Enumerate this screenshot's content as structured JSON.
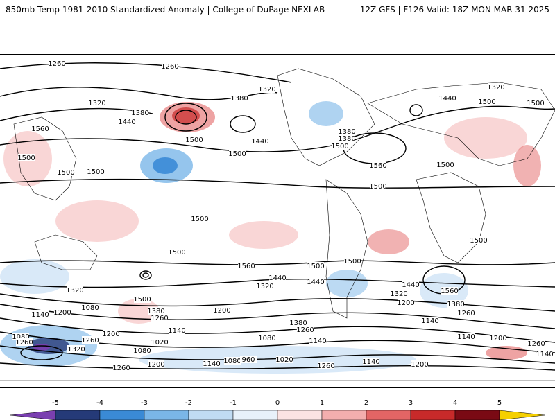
{
  "header": {
    "title": "850mb Temp 1981-2010 Standardized Anomaly | College of DuPage NEXLAB",
    "run_info": "12Z GFS | F126 Valid: 18Z MON MAR 31 2025"
  },
  "contour_labels": [
    {
      "text": "1260"
    },
    {
      "text": "1260"
    },
    {
      "text": "1320"
    },
    {
      "text": "1380"
    },
    {
      "text": "1440"
    },
    {
      "text": "1320"
    },
    {
      "text": "1380"
    },
    {
      "text": "1560"
    },
    {
      "text": "1500"
    },
    {
      "text": "1500"
    },
    {
      "text": "1500"
    },
    {
      "text": "1500"
    },
    {
      "text": "1440"
    },
    {
      "text": "1380"
    },
    {
      "text": "1500"
    },
    {
      "text": "1560"
    },
    {
      "text": "1500"
    },
    {
      "text": "1380"
    },
    {
      "text": "1440"
    },
    {
      "text": "1320"
    },
    {
      "text": "1500"
    },
    {
      "text": "1500"
    },
    {
      "text": "1500"
    },
    {
      "text": "1500"
    },
    {
      "text": "1500"
    },
    {
      "text": "1560"
    },
    {
      "text": "1500"
    },
    {
      "text": "1500"
    },
    {
      "text": "1500"
    },
    {
      "text": "1500"
    },
    {
      "text": "1440"
    },
    {
      "text": "1320"
    },
    {
      "text": "1080"
    },
    {
      "text": "1140"
    },
    {
      "text": "1200"
    },
    {
      "text": "1500"
    },
    {
      "text": "1380"
    },
    {
      "text": "1260"
    },
    {
      "text": "1200"
    },
    {
      "text": "1140"
    },
    {
      "text": "1080"
    },
    {
      "text": "1320"
    },
    {
      "text": "1260"
    },
    {
      "text": "1200"
    },
    {
      "text": "1020"
    },
    {
      "text": "1080"
    },
    {
      "text": "1200"
    },
    {
      "text": "1140"
    },
    {
      "text": "1080"
    },
    {
      "text": "960"
    },
    {
      "text": "1020"
    },
    {
      "text": "1260"
    },
    {
      "text": "1440"
    },
    {
      "text": "1320"
    },
    {
      "text": "1380"
    },
    {
      "text": "1260"
    },
    {
      "text": "1140"
    },
    {
      "text": "1440"
    },
    {
      "text": "1320"
    },
    {
      "text": "1200"
    },
    {
      "text": "1380"
    },
    {
      "text": "1260"
    },
    {
      "text": "1140"
    },
    {
      "text": "1560"
    },
    {
      "text": "1200"
    },
    {
      "text": "1140"
    },
    {
      "text": "1260"
    },
    {
      "text": "1140"
    },
    {
      "text": "1200"
    },
    {
      "text": "1140"
    },
    {
      "text": "1260"
    },
    {
      "text": "1080"
    },
    {
      "text": "1320"
    },
    {
      "text": "1260"
    }
  ],
  "colorbar": {
    "ticks": [
      "-5",
      "-4",
      "-3",
      "-2",
      "-1",
      "0",
      "1",
      "2",
      "3",
      "4",
      "5"
    ],
    "colors": [
      "#7a3fb0",
      "#253a78",
      "#3a8ad6",
      "#7ab6e8",
      "#c0dbf3",
      "#e8f1fa",
      "#fbe3e3",
      "#f3aeae",
      "#e36565",
      "#c82a2a",
      "#7a0a14",
      "#f5d000"
    ]
  }
}
